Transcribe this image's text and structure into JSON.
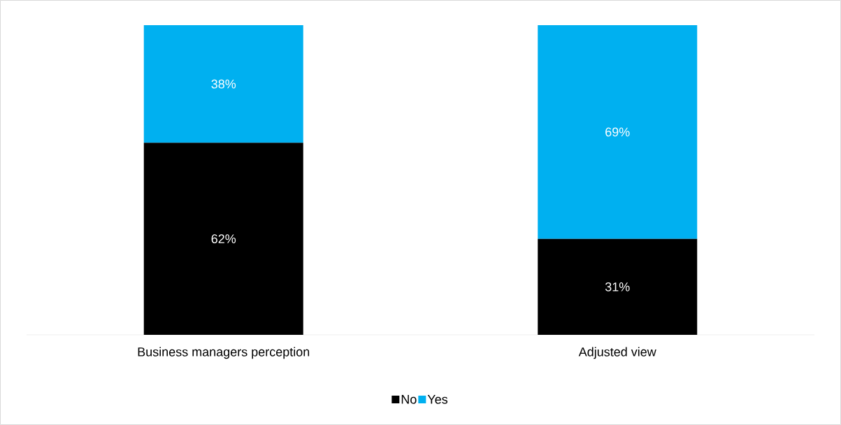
{
  "chart_data": {
    "type": "bar",
    "stacked": true,
    "categories": [
      "Business managers perception",
      "Adjusted view"
    ],
    "ylim": [
      0,
      100
    ],
    "legend": "bottom",
    "series": [
      {
        "name": "No",
        "color": "#000000",
        "values": [
          62,
          31
        ],
        "value_labels": [
          "62%",
          "31%"
        ]
      },
      {
        "name": "Yes",
        "color": "#00b0f0",
        "values": [
          38,
          69
        ],
        "value_labels": [
          "38%",
          "69%"
        ]
      }
    ]
  }
}
